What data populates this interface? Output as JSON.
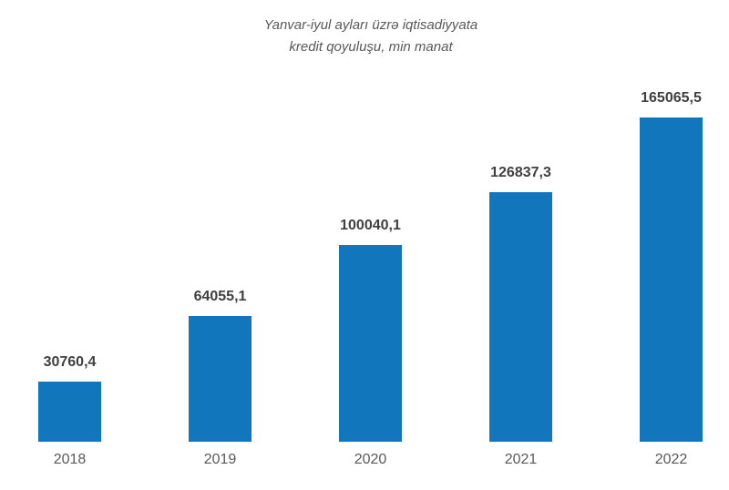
{
  "chart_data": {
    "type": "bar",
    "title": "Yanvar-iyul ayları üzrə iqtisadiyyata kredit qoyuluşu, min manat",
    "title_line1": "Yanvar-iyul ayları üzrə iqtisadiyyata",
    "title_line2": "kredit qoyuluşu, min manat",
    "categories": [
      "2018",
      "2019",
      "2020",
      "2021",
      "2022"
    ],
    "values": [
      30760.4,
      64055.1,
      100040.1,
      126837.3,
      165065.5
    ],
    "value_labels": [
      "30760,4",
      "64055,1",
      "100040,1",
      "126837,3",
      "165065,5"
    ],
    "xlabel": "",
    "ylabel": "",
    "ylim": [
      0,
      165065.5
    ],
    "grid": false,
    "legend_position": "none",
    "axes_visible": false,
    "colors": {
      "bar": "#1276bc",
      "value_label": "#404040",
      "tick_label": "#595959",
      "title": "#595959"
    }
  }
}
